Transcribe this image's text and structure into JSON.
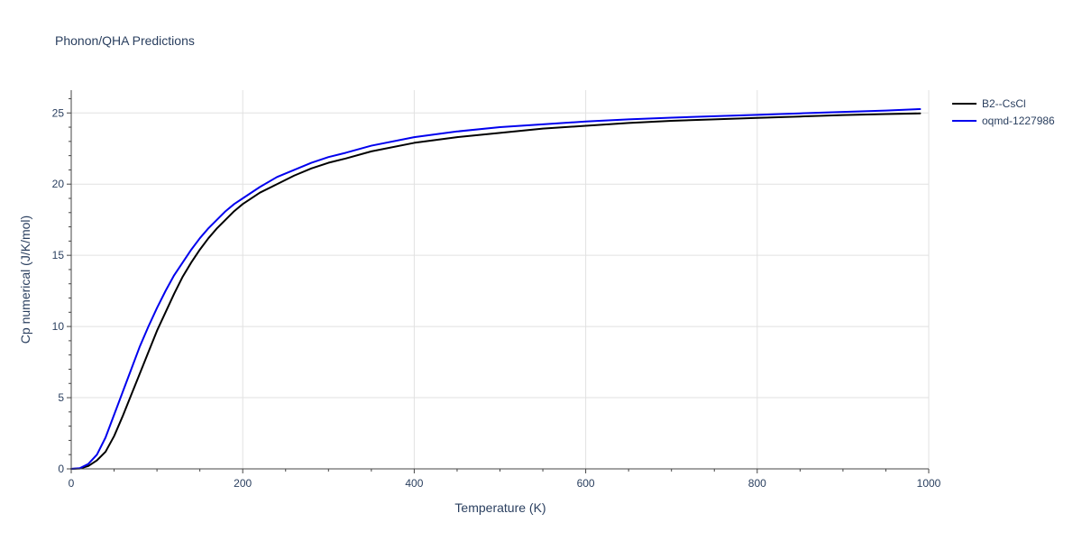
{
  "chart_data": {
    "type": "line",
    "title": "Phonon/QHA Predictions",
    "xlabel": "Temperature (K)",
    "ylabel": "Cp numerical (J/K/mol)",
    "xlim": [
      0,
      1000
    ],
    "ylim": [
      0,
      26.6
    ],
    "xticks": [
      0,
      200,
      400,
      600,
      800,
      1000
    ],
    "yticks": [
      0,
      5,
      10,
      15,
      20,
      25
    ],
    "xtick_labels": [
      "0",
      "200",
      "400",
      "600",
      "800",
      "1000"
    ],
    "ytick_labels": [
      "0",
      "5",
      "10",
      "15",
      "20",
      "25"
    ],
    "grid": true,
    "legend_position": "top-right",
    "series": [
      {
        "name": "B2--CsCl",
        "color": "#000000",
        "x": [
          0,
          10,
          20,
          30,
          40,
          50,
          60,
          70,
          80,
          90,
          100,
          110,
          120,
          130,
          140,
          150,
          160,
          170,
          180,
          190,
          200,
          220,
          240,
          260,
          280,
          300,
          320,
          350,
          400,
          450,
          500,
          550,
          600,
          650,
          700,
          750,
          800,
          850,
          900,
          950,
          990
        ],
        "y": [
          0,
          0.02,
          0.2,
          0.6,
          1.2,
          2.3,
          3.7,
          5.2,
          6.7,
          8.2,
          9.7,
          11.0,
          12.3,
          13.5,
          14.5,
          15.4,
          16.2,
          16.9,
          17.5,
          18.1,
          18.6,
          19.4,
          20.0,
          20.6,
          21.1,
          21.5,
          21.8,
          22.3,
          22.9,
          23.3,
          23.6,
          23.9,
          24.1,
          24.3,
          24.45,
          24.55,
          24.65,
          24.75,
          24.85,
          24.92,
          24.97
        ]
      },
      {
        "name": "oqmd-1227986",
        "color": "#0000ee",
        "x": [
          0,
          10,
          20,
          30,
          40,
          50,
          60,
          70,
          80,
          90,
          100,
          110,
          120,
          130,
          140,
          150,
          160,
          170,
          180,
          190,
          200,
          220,
          240,
          260,
          280,
          300,
          320,
          350,
          400,
          450,
          500,
          550,
          600,
          650,
          700,
          750,
          800,
          850,
          900,
          950,
          990
        ],
        "y": [
          0,
          0.05,
          0.35,
          1.0,
          2.2,
          3.8,
          5.4,
          7.0,
          8.6,
          10.0,
          11.3,
          12.5,
          13.6,
          14.5,
          15.4,
          16.2,
          16.9,
          17.5,
          18.1,
          18.6,
          19.0,
          19.8,
          20.5,
          21.0,
          21.5,
          21.9,
          22.2,
          22.7,
          23.3,
          23.7,
          24.0,
          24.2,
          24.4,
          24.55,
          24.67,
          24.77,
          24.87,
          24.97,
          25.07,
          25.17,
          25.27
        ]
      }
    ]
  }
}
